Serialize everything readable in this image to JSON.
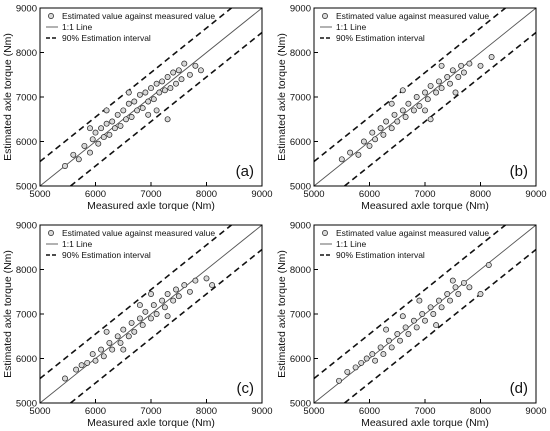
{
  "chart_data": [
    {
      "id": "a",
      "type": "scatter",
      "xlabel": "Measured axle torque (Nm)",
      "ylabel": "Estimated axle torque (Nm)",
      "xlim": [
        5000,
        9000
      ],
      "ylim": [
        5000,
        9000
      ],
      "xticks": [
        "5000",
        "6000",
        "7000",
        "8000",
        "9000"
      ],
      "yticks": [
        "5000",
        "6000",
        "7000",
        "8000",
        "9000"
      ],
      "legend": [
        "Estimated value against measured value",
        "1:1 Line",
        "90% Estimation interval"
      ],
      "legend_position": "top-left",
      "panel_label": "(a)",
      "interval_offset": 550,
      "points": [
        [
          5450,
          5450
        ],
        [
          5600,
          5700
        ],
        [
          5700,
          5600
        ],
        [
          5800,
          5900
        ],
        [
          5900,
          5750
        ],
        [
          5950,
          6050
        ],
        [
          6000,
          6200
        ],
        [
          6050,
          5950
        ],
        [
          6100,
          6300
        ],
        [
          6150,
          6100
        ],
        [
          6200,
          6400
        ],
        [
          6250,
          6150
        ],
        [
          6300,
          6450
        ],
        [
          6350,
          6300
        ],
        [
          6400,
          6600
        ],
        [
          6450,
          6350
        ],
        [
          6500,
          6700
        ],
        [
          6550,
          6500
        ],
        [
          6600,
          6850
        ],
        [
          6650,
          6550
        ],
        [
          6700,
          6900
        ],
        [
          6750,
          6700
        ],
        [
          6800,
          7050
        ],
        [
          6850,
          6750
        ],
        [
          6900,
          7100
        ],
        [
          6950,
          6900
        ],
        [
          7000,
          7200
        ],
        [
          7050,
          6950
        ],
        [
          7100,
          7300
        ],
        [
          7150,
          7100
        ],
        [
          7200,
          7350
        ],
        [
          7250,
          7150
        ],
        [
          7300,
          7450
        ],
        [
          7350,
          7200
        ],
        [
          7400,
          7550
        ],
        [
          7450,
          7300
        ],
        [
          7500,
          7600
        ],
        [
          7550,
          7400
        ],
        [
          7600,
          7750
        ],
        [
          7700,
          7500
        ],
        [
          7800,
          7700
        ],
        [
          7900,
          7600
        ],
        [
          6950,
          6600
        ],
        [
          7300,
          6500
        ],
        [
          6200,
          6700
        ],
        [
          6600,
          7100
        ],
        [
          7100,
          6700
        ],
        [
          5900,
          6300
        ]
      ]
    },
    {
      "id": "b",
      "type": "scatter",
      "xlabel": "Measured axle torque (Nm)",
      "ylabel": "Estimated axle torque (Nm)",
      "xlim": [
        5000,
        9000
      ],
      "ylim": [
        5000,
        9000
      ],
      "xticks": [
        "5000",
        "6000",
        "7000",
        "8000",
        "9000"
      ],
      "yticks": [
        "5000",
        "6000",
        "7000",
        "8000",
        "9000"
      ],
      "legend": [
        "Estimated value against measured value",
        "1:1 Line",
        "90% Estimation interval"
      ],
      "legend_position": "top-left",
      "panel_label": "(b)",
      "interval_offset": 550,
      "points": [
        [
          5500,
          5600
        ],
        [
          5650,
          5750
        ],
        [
          5800,
          5700
        ],
        [
          5900,
          6000
        ],
        [
          6000,
          5900
        ],
        [
          6050,
          6200
        ],
        [
          6100,
          6050
        ],
        [
          6200,
          6300
        ],
        [
          6250,
          6150
        ],
        [
          6300,
          6450
        ],
        [
          6400,
          6300
        ],
        [
          6450,
          6600
        ],
        [
          6500,
          6450
        ],
        [
          6600,
          6700
        ],
        [
          6650,
          6550
        ],
        [
          6700,
          6850
        ],
        [
          6800,
          6700
        ],
        [
          6850,
          7000
        ],
        [
          6900,
          6800
        ],
        [
          7000,
          7100
        ],
        [
          7050,
          6950
        ],
        [
          7100,
          7250
        ],
        [
          7200,
          7100
        ],
        [
          7250,
          7350
        ],
        [
          7300,
          7200
        ],
        [
          7400,
          7450
        ],
        [
          7450,
          7300
        ],
        [
          7500,
          7600
        ],
        [
          7600,
          7450
        ],
        [
          7650,
          7700
        ],
        [
          7700,
          7550
        ],
        [
          7800,
          7750
        ],
        [
          8000,
          7700
        ],
        [
          8200,
          7900
        ],
        [
          7100,
          6500
        ],
        [
          7300,
          7700
        ],
        [
          6600,
          7150
        ],
        [
          6400,
          6850
        ],
        [
          7000,
          6700
        ],
        [
          7550,
          7100
        ]
      ]
    },
    {
      "id": "c",
      "type": "scatter",
      "xlabel": "Measured axle torque (Nm)",
      "ylabel": "Estimated axle torque (Nm)",
      "xlim": [
        5000,
        9000
      ],
      "ylim": [
        5000,
        9000
      ],
      "xticks": [
        "5000",
        "6000",
        "7000",
        "8000",
        "9000"
      ],
      "yticks": [
        "5000",
        "6000",
        "7000",
        "8000",
        "9000"
      ],
      "legend": [
        "Estimated value against measured value",
        "1:1 Line",
        "90% Estimation interval"
      ],
      "legend_position": "top-left",
      "panel_label": "(c)",
      "interval_offset": 550,
      "points": [
        [
          5450,
          5550
        ],
        [
          5650,
          5750
        ],
        [
          5750,
          5850
        ],
        [
          5850,
          5900
        ],
        [
          5950,
          6100
        ],
        [
          6000,
          5950
        ],
        [
          6100,
          6200
        ],
        [
          6150,
          6050
        ],
        [
          6250,
          6350
        ],
        [
          6300,
          6200
        ],
        [
          6400,
          6500
        ],
        [
          6450,
          6350
        ],
        [
          6500,
          6650
        ],
        [
          6600,
          6500
        ],
        [
          6650,
          6800
        ],
        [
          6700,
          6600
        ],
        [
          6800,
          6900
        ],
        [
          6850,
          6750
        ],
        [
          6900,
          7050
        ],
        [
          7000,
          6900
        ],
        [
          7050,
          7200
        ],
        [
          7100,
          7000
        ],
        [
          7200,
          7300
        ],
        [
          7250,
          7150
        ],
        [
          7300,
          7450
        ],
        [
          7400,
          7300
        ],
        [
          7450,
          7550
        ],
        [
          7500,
          7400
        ],
        [
          7600,
          7650
        ],
        [
          7700,
          7500
        ],
        [
          7800,
          7750
        ],
        [
          8000,
          7800
        ],
        [
          8100,
          7650
        ],
        [
          6200,
          6600
        ],
        [
          6800,
          7200
        ],
        [
          7300,
          6950
        ],
        [
          6500,
          6200
        ],
        [
          7000,
          7450
        ]
      ]
    },
    {
      "id": "d",
      "type": "scatter",
      "xlabel": "Measured axle torque (Nm)",
      "ylabel": "Estimated axle torque (Nm)",
      "xlim": [
        5000,
        9000
      ],
      "ylim": [
        5000,
        9000
      ],
      "xticks": [
        "5000",
        "6000",
        "7000",
        "8000",
        "9000"
      ],
      "yticks": [
        "5000",
        "6000",
        "7000",
        "8000",
        "9000"
      ],
      "legend": [
        "Estimated value against measured value",
        "1:1 Line",
        "90% Estimation interval"
      ],
      "legend_position": "top-left",
      "panel_label": "(d)",
      "interval_offset": 550,
      "points": [
        [
          5450,
          5500
        ],
        [
          5600,
          5700
        ],
        [
          5750,
          5800
        ],
        [
          5850,
          5900
        ],
        [
          5950,
          6000
        ],
        [
          6050,
          6100
        ],
        [
          6100,
          5950
        ],
        [
          6200,
          6250
        ],
        [
          6250,
          6100
        ],
        [
          6350,
          6400
        ],
        [
          6400,
          6250
        ],
        [
          6500,
          6550
        ],
        [
          6550,
          6400
        ],
        [
          6650,
          6700
        ],
        [
          6700,
          6550
        ],
        [
          6800,
          6850
        ],
        [
          6850,
          6700
        ],
        [
          6950,
          7000
        ],
        [
          7000,
          6850
        ],
        [
          7100,
          7150
        ],
        [
          7150,
          7000
        ],
        [
          7250,
          7300
        ],
        [
          7300,
          7150
        ],
        [
          7400,
          7450
        ],
        [
          7450,
          7300
        ],
        [
          7550,
          7600
        ],
        [
          7600,
          7450
        ],
        [
          7700,
          7700
        ],
        [
          7800,
          7600
        ],
        [
          8000,
          7450
        ],
        [
          8150,
          8100
        ],
        [
          6300,
          6650
        ],
        [
          6900,
          7300
        ],
        [
          7200,
          6750
        ],
        [
          6600,
          6950
        ],
        [
          7500,
          7750
        ]
      ]
    }
  ]
}
